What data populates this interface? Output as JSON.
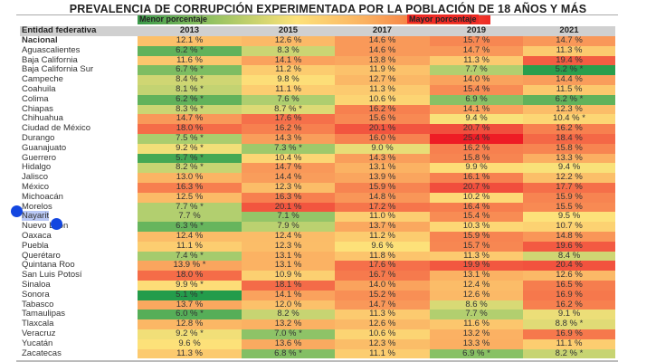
{
  "chart_data": {
    "type": "table",
    "title": "PREVALENCIA DE CORRUPCIÓN EXPERIMENTADA POR LA POBLACIÓN DE 18 AÑOS Y MÁS",
    "legend": {
      "low": "Menor porcentaje",
      "high": "Mayor porcentaje",
      "colors": [
        "#1e9a4a",
        "#fde27a",
        "#ee1c25"
      ]
    },
    "columns": [
      "Entidad federativa",
      "2013",
      "2015",
      "2017",
      "2019",
      "2021"
    ],
    "rows": [
      [
        "Nacional",
        "12.1 %",
        "12.6 %",
        "14.6 %",
        "15.7 %",
        "14.7 %"
      ],
      [
        "Aguascalientes",
        "6.2 % *",
        "8.3 %",
        "14.6 %",
        "14.7 %",
        "11.3 %"
      ],
      [
        "Baja California",
        "11.6 %",
        "14.1 %",
        "13.8 %",
        "11.3 %",
        "19.4 %"
      ],
      [
        "Baja California Sur",
        "6.7 % *",
        "11.2 %",
        "11.9 %",
        "7.7 %",
        "5.2 % *"
      ],
      [
        "Campeche",
        "8.4 % *",
        "9.8 %",
        "12.7 %",
        "14.0 %",
        "14.4 %"
      ],
      [
        "Coahuila",
        "8.1 % *",
        "11.1 %",
        "11.3 %",
        "15.4 %",
        "11.5 %"
      ],
      [
        "Colima",
        "6.2 % *",
        "7.6 %",
        "10.6 %",
        "6.9 %",
        "6.2 % *"
      ],
      [
        "Chiapas",
        "8.3 % *",
        "8.7 % *",
        "16.2 %",
        "14.1 %",
        "12.3 %"
      ],
      [
        "Chihuahua",
        "14.7 %",
        "17.6 %",
        "15.6 %",
        "9.4 %",
        "10.4 % *"
      ],
      [
        "Ciudad de México",
        "18.0 %",
        "16.2 %",
        "20.1 %",
        "20.7 %",
        "16.2 %"
      ],
      [
        "Durango",
        "7.5 % *",
        "14.3 %",
        "16.0 %",
        "25.4 %",
        "18.4 %"
      ],
      [
        "Guanajuato",
        "9.2 % *",
        "7.3 % *",
        "9.0 %",
        "16.2 %",
        "15.8 %"
      ],
      [
        "Guerrero",
        "5.7 % *",
        "10.4 %",
        "14.3 %",
        "15.8 %",
        "13.3 %"
      ],
      [
        "Hidalgo",
        "8.2 % *",
        "14.7 %",
        "13.1 %",
        "9.9 %",
        "9.4 %"
      ],
      [
        "Jalisco",
        "13.0 %",
        "14.4 %",
        "13.9 %",
        "16.1 %",
        "12.2 %"
      ],
      [
        "México",
        "16.3 %",
        "12.3 %",
        "15.9 %",
        "20.7 %",
        "17.7 %"
      ],
      [
        "Michoacán",
        "12.5 %",
        "16.3 %",
        "14.8 %",
        "10.2 %",
        "15.9 %"
      ],
      [
        "Morelos",
        "7.7 % *",
        "20.1 %",
        "17.2 %",
        "16.4 %",
        "15.5 %"
      ],
      [
        "Nayarit",
        "7.7 %",
        "7.1 %",
        "11.0 %",
        "15.4 %",
        "9.5 %"
      ],
      [
        "Nuevo León",
        "6.3 % *",
        "7.9 %",
        "13.7 %",
        "10.3 %",
        "10.7 %"
      ],
      [
        "Oaxaca",
        "12.4 %",
        "12.4 %",
        "11.2 %",
        "15.9 %",
        "14.8 %"
      ],
      [
        "Puebla",
        "11.1 %",
        "12.3 %",
        "9.6 %",
        "15.7 %",
        "19.6 %"
      ],
      [
        "Querétaro",
        "7.4 % *",
        "13.1 %",
        "11.8 %",
        "11.3 %",
        "8.4 %"
      ],
      [
        "Quintana Roo",
        "13.9 % *",
        "13.1 %",
        "17.6 %",
        "19.9 %",
        "20.4 %"
      ],
      [
        "San Luis Potosí",
        "18.0 %",
        "10.9 %",
        "16.7 %",
        "13.1 %",
        "12.6 %"
      ],
      [
        "Sinaloa",
        "9.9 % *",
        "18.1 %",
        "14.0 %",
        "12.4 %",
        "16.5 %"
      ],
      [
        "Sonora",
        "5.1 % *",
        "14.1 %",
        "15.2 %",
        "12.6 %",
        "16.9 %"
      ],
      [
        "Tabasco",
        "13.7 %",
        "12.0 %",
        "14.7 %",
        "8.6 %",
        "16.2 %"
      ],
      [
        "Tamaulipas",
        "6.0 % *",
        "8.2 %",
        "11.3 %",
        "7.7 %",
        "9.1 %"
      ],
      [
        "Tlaxcala",
        "12.8 %",
        "13.2 %",
        "12.6 %",
        "11.6 %",
        "8.8 % *"
      ],
      [
        "Veracruz",
        "9.2 % *",
        "7.0 % *",
        "10.6 %",
        "13.2 %",
        "16.9 %"
      ],
      [
        "Yucatán",
        "9.6 %",
        "13.6 %",
        "12.3 %",
        "13.3 %",
        "11.1 %"
      ],
      [
        "Zacatecas",
        "11.3 %",
        "6.8 % *",
        "11.1 %",
        "6.9 % *",
        "8.2 % *"
      ]
    ]
  }
}
